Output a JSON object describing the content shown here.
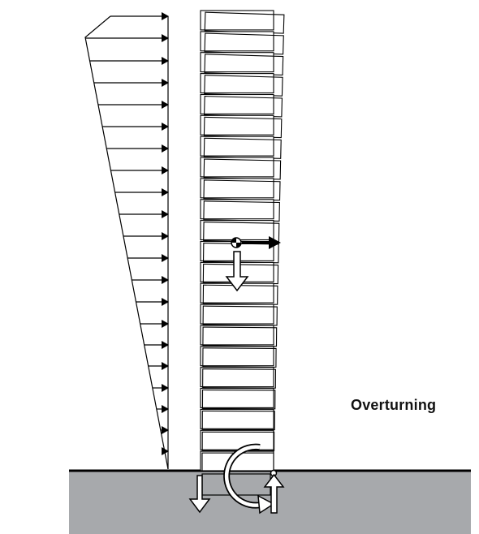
{
  "caption": "Overturning",
  "colors": {
    "ground": "#a7a9ac",
    "line": "#000000",
    "fill": "#ffffff"
  },
  "icons": [
    "pressure-arrow-icon",
    "center-of-mass-icon",
    "horizontal-force-arrow-icon",
    "weight-arrow-icon",
    "overturning-moment-icon",
    "reaction-arrow-icon"
  ]
}
